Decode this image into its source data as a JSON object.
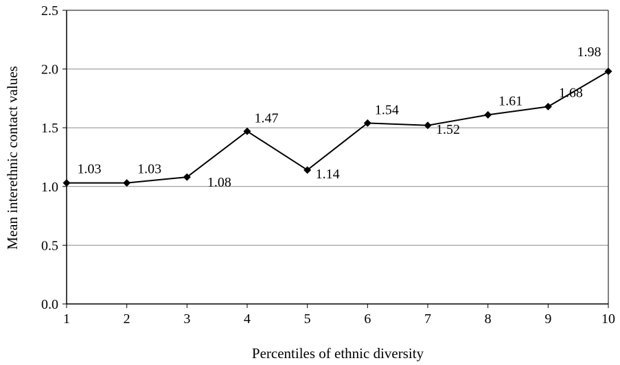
{
  "chart_data": {
    "type": "line",
    "title": "",
    "xlabel": "Percentiles of ethnic diversity",
    "ylabel": "Mean interethnic contact values",
    "x": [
      1,
      2,
      3,
      4,
      5,
      6,
      7,
      8,
      9,
      10
    ],
    "x_tick_labels": [
      "1",
      "2",
      "3",
      "4",
      "5",
      "6",
      "7",
      "8",
      "9",
      "10"
    ],
    "ylim": [
      0,
      2.5
    ],
    "y_ticks": [
      0,
      0.5,
      1.0,
      1.5,
      2.0,
      2.5
    ],
    "y_tick_labels": [
      "0.0",
      "0.5",
      "1.0",
      "1.5",
      "2.0",
      "2.5"
    ],
    "grid": "horizontal",
    "legend": "none",
    "series": [
      {
        "values": [
          1.03,
          1.03,
          1.08,
          1.47,
          1.14,
          1.54,
          1.52,
          1.61,
          1.68,
          1.98
        ],
        "data_labels": [
          "1.03",
          "1.03",
          "1.08",
          "1.47",
          "1.14",
          "1.54",
          "1.52",
          "1.61",
          "1.68",
          "1.98"
        ],
        "color": "#000000",
        "marker": "diamond"
      }
    ]
  }
}
